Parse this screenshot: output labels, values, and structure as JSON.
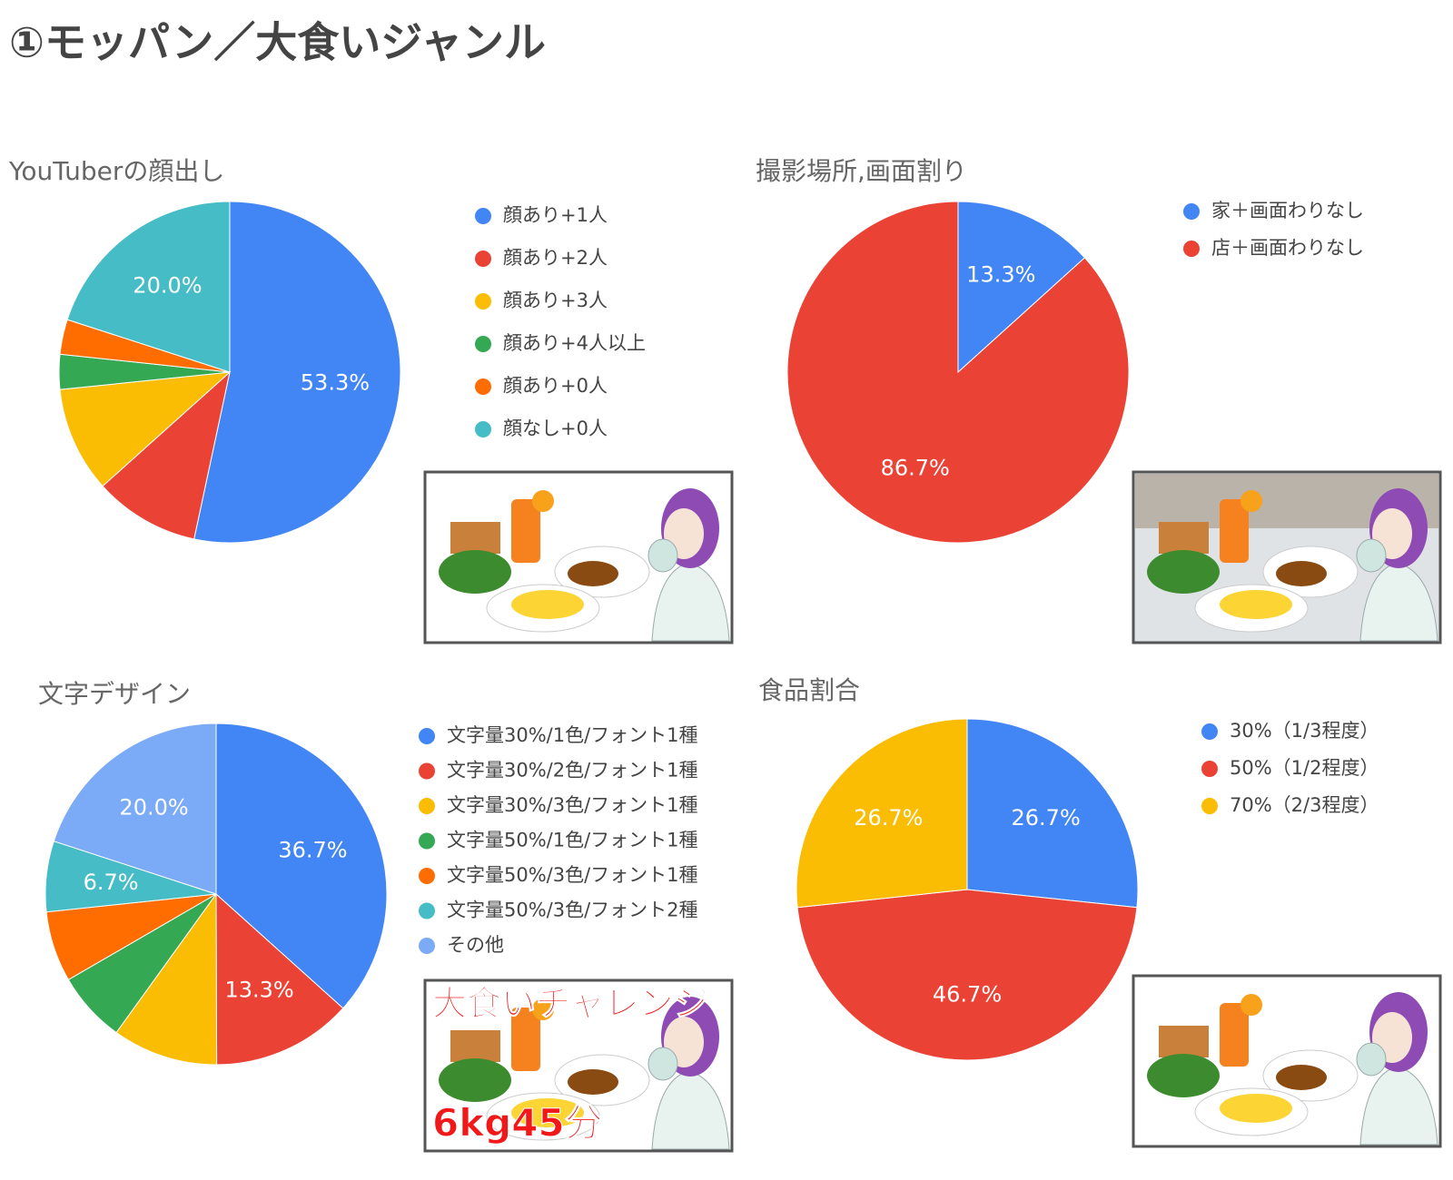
{
  "title": "①モッパン／大食いジャンル",
  "chart_data": [
    {
      "type": "pie",
      "title": "YouTuberの顔出し",
      "categories": [
        "顔あり+1人",
        "顔あり+2人",
        "顔あり+3人",
        "顔あり+4人以上",
        "顔あり+0人",
        "顔なし+0人"
      ],
      "values": [
        53.3,
        10.0,
        10.0,
        3.3,
        3.3,
        20.0
      ],
      "value_labels": [
        "53.3%",
        null,
        null,
        null,
        null,
        "20.0%"
      ],
      "colors": [
        "#4285f4",
        "#ea4335",
        "#fbbc04",
        "#34a853",
        "#ff6d01",
        "#46bdc6"
      ]
    },
    {
      "type": "pie",
      "title": "撮影場所,画面割り",
      "categories": [
        "家＋画面わりなし",
        "店＋画面わりなし"
      ],
      "values": [
        13.3,
        86.7
      ],
      "value_labels": [
        "13.3%",
        "86.7%"
      ],
      "colors": [
        "#4285f4",
        "#ea4335"
      ]
    },
    {
      "type": "pie",
      "title": "文字デザイン",
      "categories": [
        "文字量30%/1色/フォント1種",
        "文字量30%/2色/フォント1種",
        "文字量30%/3色/フォント1種",
        "文字量50%/1色/フォント1種",
        "文字量50%/3色/フォント1種",
        "文字量50%/3色/フォント2種",
        "その他"
      ],
      "values": [
        36.7,
        13.3,
        10.0,
        6.7,
        6.7,
        6.7,
        20.0
      ],
      "value_labels": [
        "36.7%",
        "13.3%",
        null,
        null,
        null,
        "6.7%",
        "20.0%"
      ],
      "colors": [
        "#4285f4",
        "#ea4335",
        "#fbbc04",
        "#34a853",
        "#ff6d01",
        "#46bdc6",
        "#7baaf7"
      ]
    },
    {
      "type": "pie",
      "title": "食品割合",
      "categories": [
        "30%（1/3程度）",
        "50%（1/2程度）",
        "70%（2/3程度）"
      ],
      "values": [
        26.7,
        46.7,
        26.7
      ],
      "value_labels": [
        "26.7%",
        "46.7%",
        "26.7%"
      ],
      "colors": [
        "#4285f4",
        "#ea4335",
        "#fbbc04"
      ]
    }
  ],
  "thumbnail": {
    "headline": "大食いチャレンジ",
    "caption": "6kg45分"
  }
}
